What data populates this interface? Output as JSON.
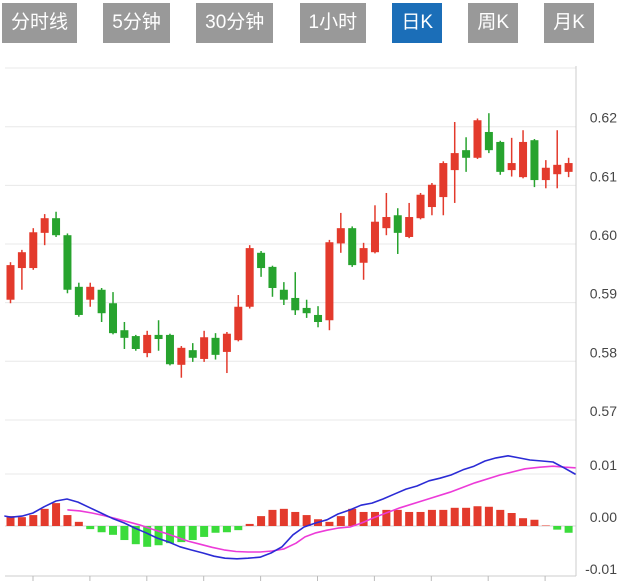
{
  "tabs": {
    "items": [
      {
        "key": "timeline",
        "label": "分时线",
        "active": false
      },
      {
        "key": "5min",
        "label": "5分钟",
        "active": false
      },
      {
        "key": "30min",
        "label": "30分钟",
        "active": false
      },
      {
        "key": "1hour",
        "label": "1小时",
        "active": false
      },
      {
        "key": "daily-k",
        "label": "日K",
        "active": true
      },
      {
        "key": "weekly-k",
        "label": "周K",
        "active": false
      },
      {
        "key": "monthly-k",
        "label": "月K",
        "active": false
      }
    ]
  },
  "colors": {
    "up_red": "#e33a2c",
    "down_green": "#27a32e",
    "macd_bar_up": "#e33a2c",
    "macd_bar_down": "#3bdc3b",
    "dif_line": "#2b2bd5",
    "dea_line": "#ec3bd8",
    "grid": "#e8e8e8",
    "axis_border": "#cccccc",
    "zero_line": "#d5d5d5",
    "tick": "#bbbbbb",
    "axis_label": "#464646",
    "tab_bg": "#999999",
    "tab_active_bg": "#1b6eb8"
  },
  "chart_data": {
    "type": "candlestick",
    "panels": [
      {
        "name": "price",
        "y_axis": {
          "side": "right",
          "labels": [
            "0.62",
            "0.61",
            "0.60",
            "0.59",
            "0.58",
            "0.57"
          ],
          "unlabeled_gridline": 0.63
        },
        "series": [
          {
            "name": "daily-k-candles",
            "type": "candlestick",
            "ohlc": [
              [
                0.5905,
                0.5969,
                0.5899,
                0.5964
              ],
              [
                0.5959,
                0.599,
                0.5922,
                0.5986
              ],
              [
                0.5959,
                0.6027,
                0.5956,
                0.602
              ],
              [
                0.6019,
                0.6051,
                0.5998,
                0.6044
              ],
              [
                0.6044,
                0.6055,
                0.6012,
                0.6015
              ],
              [
                0.6015,
                0.6018,
                0.5916,
                0.5922
              ],
              [
                0.5927,
                0.5934,
                0.5876,
                0.5879
              ],
              [
                0.5905,
                0.5934,
                0.5893,
                0.5927
              ],
              [
                0.5922,
                0.5925,
                0.5867,
                0.5882
              ],
              [
                0.5899,
                0.5918,
                0.5846,
                0.5848
              ],
              [
                0.5853,
                0.5867,
                0.5821,
                0.584
              ],
              [
                0.5843,
                0.5845,
                0.5818,
                0.5821
              ],
              [
                0.5814,
                0.5852,
                0.5807,
                0.5845
              ],
              [
                0.5845,
                0.587,
                0.5818,
                0.5838
              ],
              [
                0.5845,
                0.5847,
                0.5793,
                0.5795
              ],
              [
                0.5794,
                0.5826,
                0.5772,
                0.5823
              ],
              [
                0.5819,
                0.5831,
                0.5799,
                0.5806
              ],
              [
                0.5804,
                0.5852,
                0.5799,
                0.5841
              ],
              [
                0.584,
                0.5848,
                0.5803,
                0.5811
              ],
              [
                0.5816,
                0.585,
                0.578,
                0.5847
              ],
              [
                0.5836,
                0.5913,
                0.5834,
                0.5893
              ],
              [
                0.5893,
                0.5998,
                0.589,
                0.5993
              ],
              [
                0.5985,
                0.5988,
                0.5944,
                0.5959
              ],
              [
                0.5961,
                0.5963,
                0.591,
                0.5925
              ],
              [
                0.5922,
                0.5935,
                0.5896,
                0.5905
              ],
              [
                0.5908,
                0.5952,
                0.5879,
                0.5887
              ],
              [
                0.5891,
                0.5905,
                0.5874,
                0.5882
              ],
              [
                0.5879,
                0.5894,
                0.5858,
                0.5867
              ],
              [
                0.587,
                0.6007,
                0.5853,
                0.6003
              ],
              [
                0.6001,
                0.6053,
                0.5985,
                0.6027
              ],
              [
                0.6027,
                0.603,
                0.5961,
                0.5964
              ],
              [
                0.5968,
                0.6002,
                0.5939,
                0.5993
              ],
              [
                0.5986,
                0.6066,
                0.5984,
                0.6038
              ],
              [
                0.6027,
                0.6087,
                0.6015,
                0.6046
              ],
              [
                0.6049,
                0.6061,
                0.5983,
                0.6019
              ],
              [
                0.6012,
                0.607,
                0.601,
                0.6046
              ],
              [
                0.6044,
                0.6087,
                0.6042,
                0.6084
              ],
              [
                0.6063,
                0.6104,
                0.6049,
                0.6101
              ],
              [
                0.608,
                0.6141,
                0.6049,
                0.6138
              ],
              [
                0.6126,
                0.6208,
                0.607,
                0.6155
              ],
              [
                0.616,
                0.6182,
                0.6123,
                0.6147
              ],
              [
                0.6147,
                0.6214,
                0.6145,
                0.6211
              ],
              [
                0.6191,
                0.6223,
                0.6155,
                0.616
              ],
              [
                0.6174,
                0.6176,
                0.6118,
                0.6123
              ],
              [
                0.6126,
                0.6181,
                0.6115,
                0.6138
              ],
              [
                0.6114,
                0.6194,
                0.6112,
                0.6174
              ],
              [
                0.6177,
                0.6179,
                0.6097,
                0.6109
              ],
              [
                0.6109,
                0.6143,
                0.6095,
                0.613
              ],
              [
                0.6119,
                0.6194,
                0.6095,
                0.6135
              ],
              [
                0.6123,
                0.6147,
                0.6114,
                0.6138
              ]
            ]
          }
        ]
      },
      {
        "name": "macd",
        "y_axis": {
          "side": "right",
          "labels": [
            "0.01",
            "0.00",
            "-0.01"
          ]
        },
        "series": [
          {
            "name": "macd-histogram",
            "type": "bar",
            "values": [
              0.0019,
              0.0017,
              0.0021,
              0.0033,
              0.0044,
              0.0021,
              0.0008,
              -0.0006,
              -0.0012,
              -0.0017,
              -0.0027,
              -0.0035,
              -0.004,
              -0.0037,
              -0.0033,
              -0.0031,
              -0.0027,
              -0.0021,
              -0.0013,
              -0.0012,
              -0.0008,
              0.0004,
              0.0019,
              0.0031,
              0.0033,
              0.0027,
              0.0021,
              0.0013,
              0.0008,
              0.0019,
              0.0033,
              0.0027,
              0.0027,
              0.0031,
              0.0031,
              0.0027,
              0.0027,
              0.0031,
              0.0031,
              0.0035,
              0.0035,
              0.0038,
              0.0037,
              0.0031,
              0.0025,
              0.0015,
              0.0012,
              0.0001,
              -0.0007,
              -0.0013
            ]
          },
          {
            "name": "dif",
            "type": "line",
            "points": [
              [
                5,
                0.0019
              ],
              [
                11,
                0.0017
              ],
              [
                22,
                0.0019
              ],
              [
                33,
                0.0025
              ],
              [
                44,
                0.0037
              ],
              [
                56,
                0.0048
              ],
              [
                67,
                0.0052
              ],
              [
                78,
                0.0046
              ],
              [
                90,
                0.0035
              ],
              [
                101,
                0.0025
              ],
              [
                112,
                0.0015
              ],
              [
                124,
                0.0006
              ],
              [
                135,
                -0.0004
              ],
              [
                146,
                -0.0013
              ],
              [
                157,
                -0.0023
              ],
              [
                169,
                -0.0031
              ],
              [
                180,
                -0.004
              ],
              [
                191,
                -0.0046
              ],
              [
                203,
                -0.0052
              ],
              [
                214,
                -0.0058
              ],
              [
                225,
                -0.0062
              ],
              [
                237,
                -0.0063
              ],
              [
                248,
                -0.0062
              ],
              [
                260,
                -0.006
              ],
              [
                271,
                -0.0052
              ],
              [
                282,
                -0.004
              ],
              [
                293,
                -0.0017
              ],
              [
                304,
                -0.0002
              ],
              [
                316,
                0.0006
              ],
              [
                327,
                0.0012
              ],
              [
                338,
                0.0023
              ],
              [
                350,
                0.0031
              ],
              [
                361,
                0.004
              ],
              [
                372,
                0.0044
              ],
              [
                383,
                0.0052
              ],
              [
                395,
                0.0062
              ],
              [
                406,
                0.0071
              ],
              [
                417,
                0.0077
              ],
              [
                429,
                0.0087
              ],
              [
                440,
                0.0092
              ],
              [
                451,
                0.0098
              ],
              [
                463,
                0.0108
              ],
              [
                474,
                0.0115
              ],
              [
                485,
                0.0125
              ],
              [
                496,
                0.0131
              ],
              [
                508,
                0.0135
              ],
              [
                519,
                0.0131
              ],
              [
                530,
                0.0127
              ],
              [
                542,
                0.0125
              ],
              [
                553,
                0.0123
              ],
              [
                564,
                0.0112
              ],
              [
                575,
                0.01
              ]
            ]
          },
          {
            "name": "dea",
            "type": "line",
            "points": [
              [
                68,
                0.0031
              ],
              [
                80,
                0.0029
              ],
              [
                92,
                0.0025
              ],
              [
                104,
                0.002
              ],
              [
                116,
                0.0014
              ],
              [
                128,
                0.0008
              ],
              [
                140,
                0.0002
              ],
              [
                152,
                -0.0006
              ],
              [
                164,
                -0.0013
              ],
              [
                176,
                -0.0021
              ],
              [
                188,
                -0.0029
              ],
              [
                200,
                -0.0035
              ],
              [
                212,
                -0.0041
              ],
              [
                224,
                -0.0046
              ],
              [
                236,
                -0.0049
              ],
              [
                248,
                -0.005
              ],
              [
                260,
                -0.005
              ],
              [
                272,
                -0.0048
              ],
              [
                284,
                -0.0044
              ],
              [
                296,
                -0.0033
              ],
              [
                305,
                -0.0021
              ],
              [
                316,
                -0.0013
              ],
              [
                327,
                -0.0008
              ],
              [
                338,
                -0.0004
              ],
              [
                350,
                -0.0002
              ],
              [
                362,
                0.0006
              ],
              [
                375,
                0.0017
              ],
              [
                400,
                0.0035
              ],
              [
                425,
                0.005
              ],
              [
                450,
                0.0065
              ],
              [
                475,
                0.0083
              ],
              [
                500,
                0.0098
              ],
              [
                525,
                0.011
              ],
              [
                540,
                0.0113
              ],
              [
                553,
                0.0115
              ],
              [
                565,
                0.0113
              ],
              [
                575,
                0.0112
              ]
            ]
          }
        ]
      }
    ]
  }
}
